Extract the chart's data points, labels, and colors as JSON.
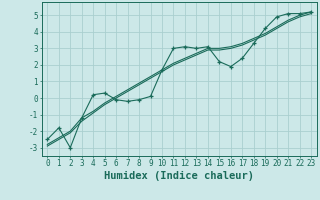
{
  "xlabel": "Humidex (Indice chaleur)",
  "ylabel": "",
  "background_color": "#cce8e8",
  "grid_color": "#aacfcf",
  "line_color": "#1a6b5a",
  "xlim": [
    -0.5,
    23.5
  ],
  "ylim": [
    -3.5,
    5.8
  ],
  "x_data": [
    0,
    1,
    2,
    3,
    4,
    5,
    6,
    7,
    8,
    9,
    10,
    11,
    12,
    13,
    14,
    15,
    16,
    17,
    18,
    19,
    20,
    21,
    22,
    23
  ],
  "y_scatter": [
    -2.5,
    -1.8,
    -3.0,
    -1.2,
    0.2,
    0.3,
    -0.1,
    -0.2,
    -0.1,
    0.1,
    1.7,
    3.0,
    3.1,
    3.0,
    3.1,
    2.2,
    1.9,
    2.4,
    3.3,
    4.2,
    4.9,
    5.1,
    5.1,
    5.2
  ],
  "y_trend1": [
    -2.8,
    -2.4,
    -2.0,
    -1.2,
    -0.8,
    -0.3,
    0.1,
    0.5,
    0.9,
    1.3,
    1.7,
    2.1,
    2.4,
    2.7,
    3.0,
    3.0,
    3.1,
    3.3,
    3.6,
    3.9,
    4.3,
    4.7,
    5.0,
    5.2
  ],
  "y_trend2": [
    -2.9,
    -2.5,
    -2.1,
    -1.4,
    -0.9,
    -0.4,
    0.0,
    0.4,
    0.8,
    1.2,
    1.6,
    2.0,
    2.3,
    2.6,
    2.9,
    2.9,
    3.0,
    3.2,
    3.5,
    3.8,
    4.2,
    4.6,
    4.9,
    5.1
  ],
  "xtick_labels": [
    "0",
    "1",
    "2",
    "3",
    "4",
    "5",
    "6",
    "7",
    "8",
    "9",
    "10",
    "11",
    "12",
    "13",
    "14",
    "15",
    "16",
    "17",
    "18",
    "19",
    "20",
    "21",
    "22",
    "23"
  ],
  "ytick_values": [
    -3,
    -2,
    -1,
    0,
    1,
    2,
    3,
    4,
    5
  ],
  "font_name": "monospace",
  "tick_fontsize": 5.5,
  "label_fontsize": 7.5
}
